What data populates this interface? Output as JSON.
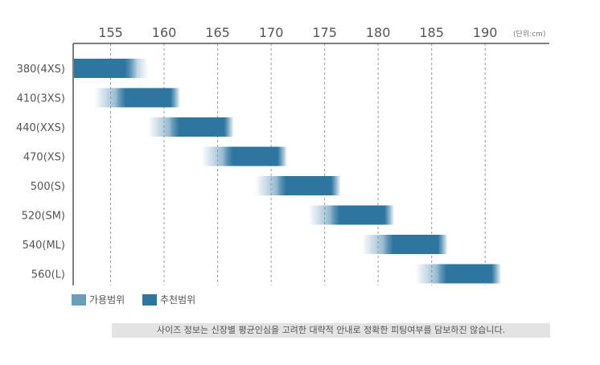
{
  "chart_data": {
    "type": "range-bar",
    "unit_label": "(단위:cm)",
    "x_ticks": [
      155,
      160,
      165,
      170,
      175,
      180,
      185,
      190
    ],
    "xlim": [
      151.5,
      196
    ],
    "grid": "vertical dashed",
    "legend_position": "bottom-left",
    "colors": {
      "allowed": "#6b9dbc",
      "recommended": "#2e76a0",
      "axis": "#555555",
      "grid": "#999999"
    },
    "legend": [
      {
        "key": "allowed",
        "label": "가용범위"
      },
      {
        "key": "recommended",
        "label": "추천범위"
      }
    ],
    "categories": [
      "380(4XS)",
      "410(3XS)",
      "440(XXS)",
      "470(XS)",
      "500(S)",
      "520(SM)",
      "540(ML)",
      "560(L)"
    ],
    "allowed_range": [
      [
        151.5,
        158.5
      ],
      [
        153.5,
        161.5
      ],
      [
        158.5,
        166.5
      ],
      [
        163.5,
        171.5
      ],
      [
        168.5,
        176.5
      ],
      [
        173.5,
        181.5
      ],
      [
        178.5,
        186.5
      ],
      [
        183.5,
        191.5
      ]
    ],
    "recommended_range": [
      [
        151.5,
        157.5
      ],
      [
        155.5,
        161.5
      ],
      [
        160.5,
        166.5
      ],
      [
        165.5,
        171.5
      ],
      [
        170.5,
        176.5
      ],
      [
        175.5,
        181.5
      ],
      [
        180.5,
        186.5
      ],
      [
        185.5,
        191.5
      ]
    ]
  },
  "note": "사이즈 정보는 신장별 평균인심을 고려한 대략적 안내로 정확한 피팅여부를 담보하진 않습니다."
}
